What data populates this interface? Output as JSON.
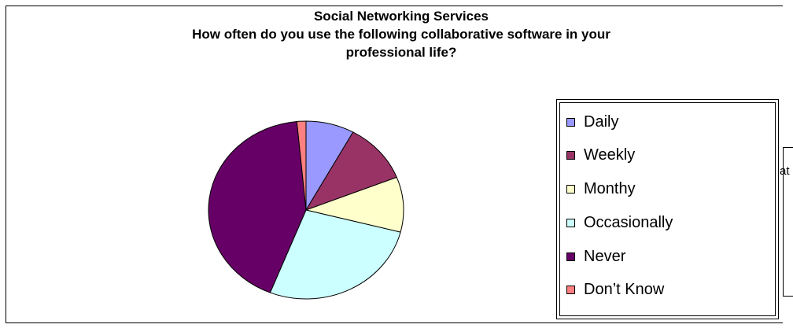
{
  "chart_data": {
    "type": "pie",
    "title": "Social Networking Services",
    "subtitle_lines": [
      "How often do you use the following collaborative software in your",
      "professional life?"
    ],
    "categories": [
      "Daily",
      "Weekly",
      "Monthy",
      "Occasionally",
      "Never",
      "Don't Know"
    ],
    "values": [
      8,
      11,
      10,
      27,
      42.5,
      1.5
    ],
    "colors": [
      "#9999ff",
      "#993366",
      "#ffffcc",
      "#ccffff",
      "#660066",
      "#ff8080"
    ],
    "legend_position": "right"
  },
  "legend": {
    "items": [
      {
        "label": "Daily",
        "color": "#9999ff"
      },
      {
        "label": "Weekly",
        "color": "#993366"
      },
      {
        "label": "Monthy",
        "color": "#ffffcc"
      },
      {
        "label": "Occasionally",
        "color": "#ccffff"
      },
      {
        "label": "Never",
        "color": "#660066"
      },
      {
        "label": "Don’t Know",
        "color": "#ff8080"
      }
    ]
  },
  "cut_text": "at"
}
